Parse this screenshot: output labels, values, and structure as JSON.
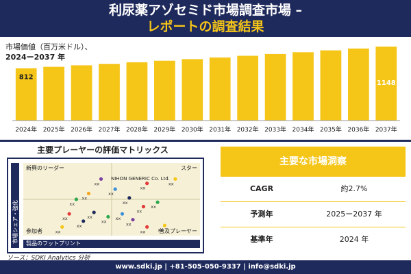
{
  "header": {
    "title_line1": "利尿薬アゾセミド市場調査市場 –",
    "title_line2": "レポートの調査結果"
  },
  "chart_data": {
    "type": "bar",
    "title": "市場価値（百万米ドル）、",
    "subtitle": "2024ー2037 年",
    "categories": [
      "2024年",
      "2025年",
      "2026年",
      "2027年",
      "2028年",
      "2029年",
      "2030年",
      "2031年",
      "2032年",
      "2033年",
      "2034年",
      "2035年",
      "2036年",
      "2037年"
    ],
    "values": [
      812,
      834,
      857,
      880,
      904,
      928,
      953,
      979,
      1005,
      1032,
      1060,
      1089,
      1118,
      1148
    ],
    "data_labels": [
      {
        "index": 0,
        "text": "812"
      },
      {
        "index": 13,
        "text": "1148"
      }
    ],
    "bar_color": "#f5c518",
    "grid": false,
    "legend": "none"
  },
  "matrix": {
    "title": "主要プレーヤーの評価マトリックス",
    "quadrants": {
      "top_left": "新興のリーダー",
      "top_right": "スター",
      "bottom_left": "参加者",
      "bottom_right": "普及プレーヤー"
    },
    "company_label": "NIHON GENERIC Co. Ltd.",
    "x_axis_label": "製品のフットプリント",
    "y_axis_label": "市場シェア・強化",
    "point_label": "xx",
    "points": [
      {
        "x": 0.44,
        "y": 0.78,
        "color": "#7a3fa0",
        "label": "xx"
      },
      {
        "x": 0.52,
        "y": 0.64,
        "color": "#3a8fd6",
        "label": "xx"
      },
      {
        "x": 0.7,
        "y": 0.72,
        "color": "#e23a3a",
        "label": "xx"
      },
      {
        "x": 0.86,
        "y": 0.78,
        "color": "#f5c518",
        "label": "xx"
      },
      {
        "x": 0.37,
        "y": 0.58,
        "color": "#f5a623",
        "label": "xx"
      },
      {
        "x": 0.3,
        "y": 0.5,
        "color": "#2fa84f",
        "label": "xx"
      },
      {
        "x": 0.6,
        "y": 0.52,
        "color": "#1f2a5c",
        "label": "xx"
      },
      {
        "x": 0.68,
        "y": 0.4,
        "color": "#e23a3a",
        "label": "xx"
      },
      {
        "x": 0.76,
        "y": 0.46,
        "color": "#2fa84f",
        "label": "xx"
      },
      {
        "x": 0.26,
        "y": 0.3,
        "color": "#e23a3a",
        "label": "xx"
      },
      {
        "x": 0.4,
        "y": 0.32,
        "color": "#1f2a5c",
        "label": "xx"
      },
      {
        "x": 0.48,
        "y": 0.26,
        "color": "#2fa84f",
        "label": "xx"
      },
      {
        "x": 0.56,
        "y": 0.3,
        "color": "#3a8fd6",
        "label": "xx"
      },
      {
        "x": 0.62,
        "y": 0.22,
        "color": "#7a3fa0",
        "label": "xx"
      },
      {
        "x": 0.34,
        "y": 0.2,
        "color": "#1f2a5c",
        "label": "xx"
      },
      {
        "x": 0.7,
        "y": 0.12,
        "color": "#e23a3a",
        "label": "xx"
      },
      {
        "x": 0.8,
        "y": 0.14,
        "color": "#f5c518",
        "label": "xx"
      },
      {
        "x": 0.22,
        "y": 0.12,
        "color": "#f5c518",
        "label": "xx"
      }
    ]
  },
  "source": "ソース：SDKI Analytics 分析",
  "kpi": {
    "title": "主要な市場洞察",
    "rows": [
      {
        "label": "CAGR",
        "value": "約2.7%"
      },
      {
        "label": "予測年",
        "value": "2025ー2037 年"
      },
      {
        "label": "基準年",
        "value": "2024 年"
      }
    ]
  },
  "footer": "www.sdki.jp | +81-505-050-9337 | info@sdki.jp"
}
